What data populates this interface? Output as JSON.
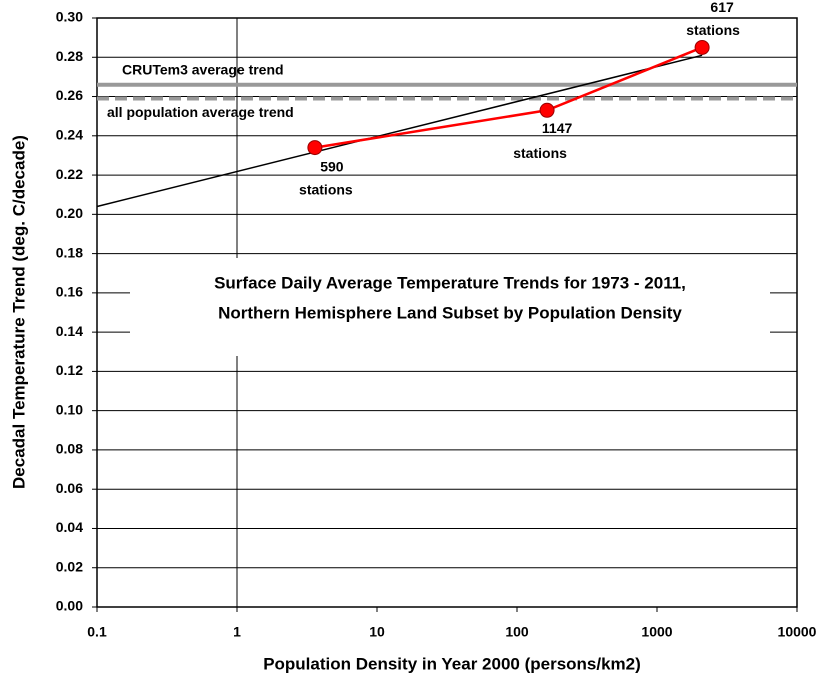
{
  "chart_data": {
    "type": "line",
    "title_lines": [
      "Surface Daily Average Temperature Trends for 1973 - 2011,",
      "Northern Hemisphere Land Subset by Population Density"
    ],
    "x_label": "Population Density in Year 2000 (persons/km2)",
    "y_label": "Decadal Temperature Trend (deg. C/decade)",
    "x": [
      3.6,
      164,
      2100
    ],
    "series": [
      {
        "color": "#ff0000",
        "values": [
          0.234,
          0.253,
          0.285
        ]
      }
    ],
    "point_labels": [
      [
        "590",
        "stations"
      ],
      [
        "1147",
        "stations"
      ],
      [
        "617",
        "stations"
      ]
    ],
    "trend_line": {
      "color": "#000000",
      "x": [
        0.1,
        2100
      ],
      "values": [
        0.204,
        0.281
      ]
    },
    "reference_lines": [
      {
        "label": "CRUTem3 average trend",
        "value": 0.266,
        "color": "#999999",
        "dashed": false
      },
      {
        "label": "all population average trend",
        "value": 0.259,
        "color": "#999999",
        "dashed": true
      }
    ],
    "xscale": "log",
    "xlim": [
      0.1,
      10000
    ],
    "xticks": [
      0.1,
      1,
      10,
      100,
      1000,
      10000
    ],
    "ylim": [
      0,
      0.3
    ],
    "yticks": [
      {
        "value": 0,
        "label": "0.00"
      },
      {
        "value": 0.02,
        "label": "0.02"
      },
      {
        "value": 0.04,
        "label": "0.04"
      },
      {
        "value": 0.06,
        "label": "0.06"
      },
      {
        "value": 0.08,
        "label": "0.08"
      },
      {
        "value": 0.1,
        "label": "0.10"
      },
      {
        "value": 0.12,
        "label": "0.12"
      },
      {
        "value": 0.14,
        "label": "0.14"
      },
      {
        "value": 0.16,
        "label": "0.16"
      },
      {
        "value": 0.18,
        "label": "0.18"
      },
      {
        "value": 0.2,
        "label": "0.20"
      },
      {
        "value": 0.22,
        "label": "0.22"
      },
      {
        "value": 0.24,
        "label": "0.24"
      },
      {
        "value": 0.26,
        "label": "0.26"
      },
      {
        "value": 0.28,
        "label": "0.28"
      },
      {
        "value": 0.3,
        "label": "0.30"
      }
    ],
    "grid": true,
    "y_axis_crosses_at": 1
  }
}
